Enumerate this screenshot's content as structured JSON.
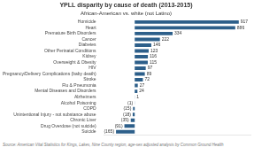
{
  "chart_data": {
    "type": "bar",
    "orientation": "horizontal",
    "title": "YPLL disparity by cause of death (2013-2015)",
    "subtitle": "African-American vs. white (not Latino)",
    "categories": [
      "Homicide",
      "Heart",
      "Premature Birth Disorders",
      "Cancer",
      "Diabetes",
      "Other Perinatal Conditions",
      "Kidney",
      "Overweight & Obesity",
      "HIV",
      "Pregnancy/Delivery Complications (baby death)",
      "Stroke",
      "Flu & Pneumonia",
      "Mental Diseases and Disorders",
      "Alzheimers",
      "Alcohol Poisoning",
      "COPD",
      "Unintentional Injury - not substance abuse",
      "Chronic Liver",
      "Drug Overdose (not suicide)",
      "Suicide"
    ],
    "values": [
      917,
      886,
      334,
      222,
      146,
      123,
      116,
      115,
      97,
      89,
      72,
      27,
      24,
      1,
      -1,
      -15,
      -18,
      -35,
      -91,
      -165
    ],
    "value_labels": [
      "917",
      "886",
      "334",
      "222",
      "146",
      "123",
      "116",
      "115",
      "97",
      "89",
      "72",
      "27",
      "24",
      "1",
      "(1)",
      "(15)",
      "(18)",
      "(35)",
      "(91)",
      "(165)"
    ],
    "data_labels": true,
    "color": "#2d5f8a",
    "xlim": [
      -270,
      1020
    ],
    "tick_labels": "y",
    "grid": false,
    "annotations": [
      "Source: American Vital Statistics for Kings, Lakes, Nine County region, age-sex adjusted analysis by Common Ground Health"
    ]
  }
}
